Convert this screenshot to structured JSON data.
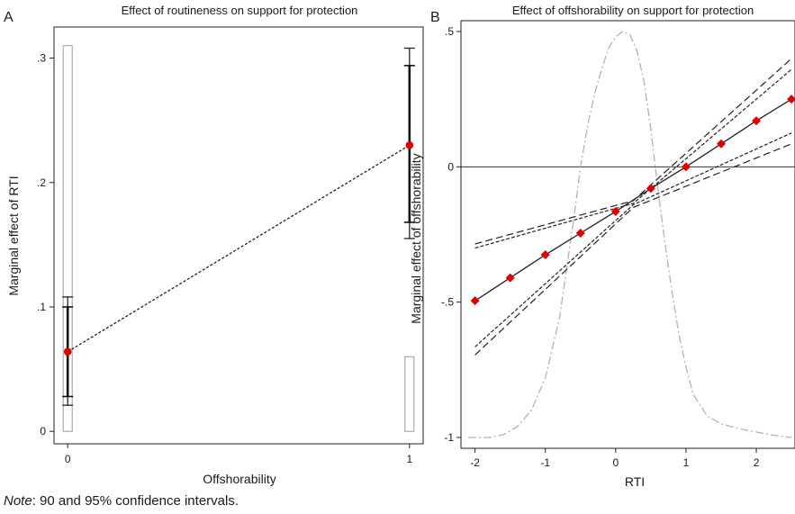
{
  "note": {
    "label": "Note",
    "text": ": 90 and 95% confidence intervals."
  },
  "chart_data": [
    {
      "type": "scatter",
      "panel_label": "A",
      "title": "Effect of routineness on support for protection",
      "xlabel": "Offshorability",
      "ylabel": "Marginal effect of RTI",
      "x_ticks": [
        "0",
        "1"
      ],
      "y_ticks": [
        "0",
        ".1",
        ".2",
        ".3"
      ],
      "xlim": [
        -0.04,
        1.04
      ],
      "ylim": [
        -0.01,
        0.325
      ],
      "histogram": {
        "x": [
          0,
          1
        ],
        "values": [
          0.31,
          0.06
        ]
      },
      "estimates": [
        {
          "x": 0,
          "y": 0.064,
          "ci90": [
            0.028,
            0.1
          ],
          "ci95": [
            0.021,
            0.108
          ]
        },
        {
          "x": 1,
          "y": 0.23,
          "ci90": [
            0.168,
            0.294
          ],
          "ci95": [
            0.155,
            0.308
          ]
        }
      ],
      "colors": {
        "point": "#e00000",
        "line": "#222222"
      }
    },
    {
      "type": "line",
      "panel_label": "B",
      "title": "Effect of offshorability on support for protection",
      "xlabel": "RTI",
      "ylabel": "Marginal effect of offshorability",
      "x_ticks": [
        "-2",
        "-1",
        "0",
        "1",
        "2"
      ],
      "y_ticks": [
        "-1",
        "-.5",
        "0",
        ".5"
      ],
      "xlim": [
        -2.2,
        2.55
      ],
      "ylim": [
        -1.04,
        0.54
      ],
      "reference_line_y": 0,
      "series": [
        {
          "role": "estimate",
          "x": [
            -2,
            -1.5,
            -1,
            -0.5,
            0,
            0.5,
            1,
            1.5,
            2,
            2.5
          ],
          "values": [
            -0.495,
            -0.41,
            -0.325,
            -0.245,
            -0.165,
            -0.08,
            0.0,
            0.085,
            0.17,
            0.25
          ]
        },
        {
          "role": "ci90_upper",
          "x": [
            -2,
            0.25,
            2.5
          ],
          "values": [
            -0.3,
            -0.135,
            0.36
          ]
        },
        {
          "role": "ci90_lower",
          "x": [
            -2,
            0.25,
            2.5
          ],
          "values": [
            -0.665,
            -0.14,
            0.125
          ]
        },
        {
          "role": "ci95_upper",
          "x": [
            -2,
            0.25,
            2.5
          ],
          "values": [
            -0.285,
            -0.125,
            0.4
          ]
        },
        {
          "role": "ci95_lower",
          "x": [
            -2,
            0.25,
            2.5
          ],
          "values": [
            -0.695,
            -0.15,
            0.085
          ]
        }
      ],
      "density": {
        "x": [
          -2.1,
          -1.8,
          -1.6,
          -1.4,
          -1.2,
          -1.0,
          -0.8,
          -0.6,
          -0.5,
          -0.4,
          -0.3,
          -0.2,
          -0.1,
          0.0,
          0.1,
          0.2,
          0.3,
          0.4,
          0.5,
          0.6,
          0.7,
          0.8,
          0.9,
          1.0,
          1.1,
          1.3,
          1.5,
          1.8,
          2.2,
          2.5
        ],
        "values": [
          -1.0,
          -1.0,
          -0.99,
          -0.96,
          -0.9,
          -0.78,
          -0.56,
          -0.2,
          0.0,
          0.15,
          0.27,
          0.36,
          0.44,
          0.48,
          0.5,
          0.49,
          0.43,
          0.32,
          0.14,
          -0.08,
          -0.28,
          -0.46,
          -0.62,
          -0.74,
          -0.84,
          -0.92,
          -0.95,
          -0.97,
          -0.99,
          -1.0
        ]
      },
      "colors": {
        "point": "#e00000",
        "line": "#222222",
        "density": "#b3b3b3"
      }
    }
  ]
}
